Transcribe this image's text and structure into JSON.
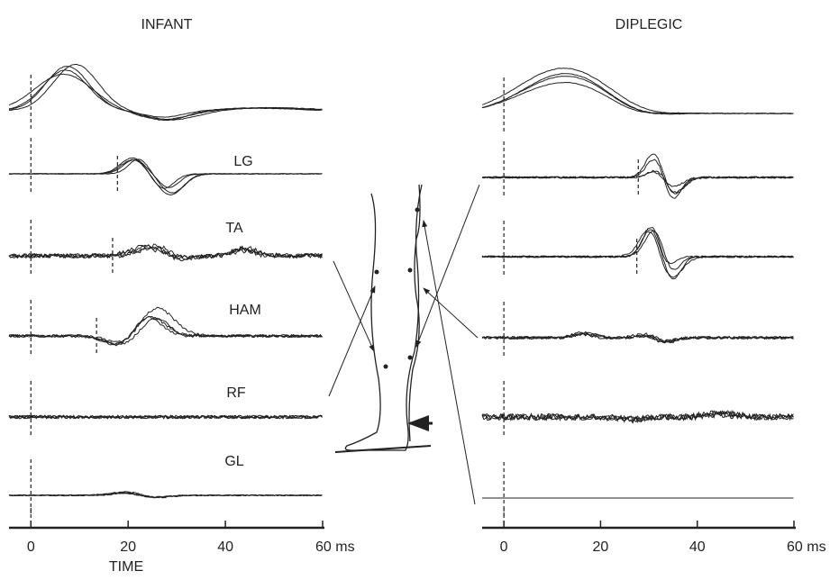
{
  "panels": [
    {
      "title": "INFANT",
      "row_labels": [
        "LG",
        "TA",
        "HAM",
        "RF",
        "GL"
      ]
    },
    {
      "title": "DIPLEGIC"
    }
  ],
  "axis": {
    "xlim": [
      -4.5,
      60
    ],
    "ticks": [
      0,
      20,
      40,
      {
        "value": 60,
        "label": "60 ms"
      }
    ],
    "label": "TIME"
  }
}
